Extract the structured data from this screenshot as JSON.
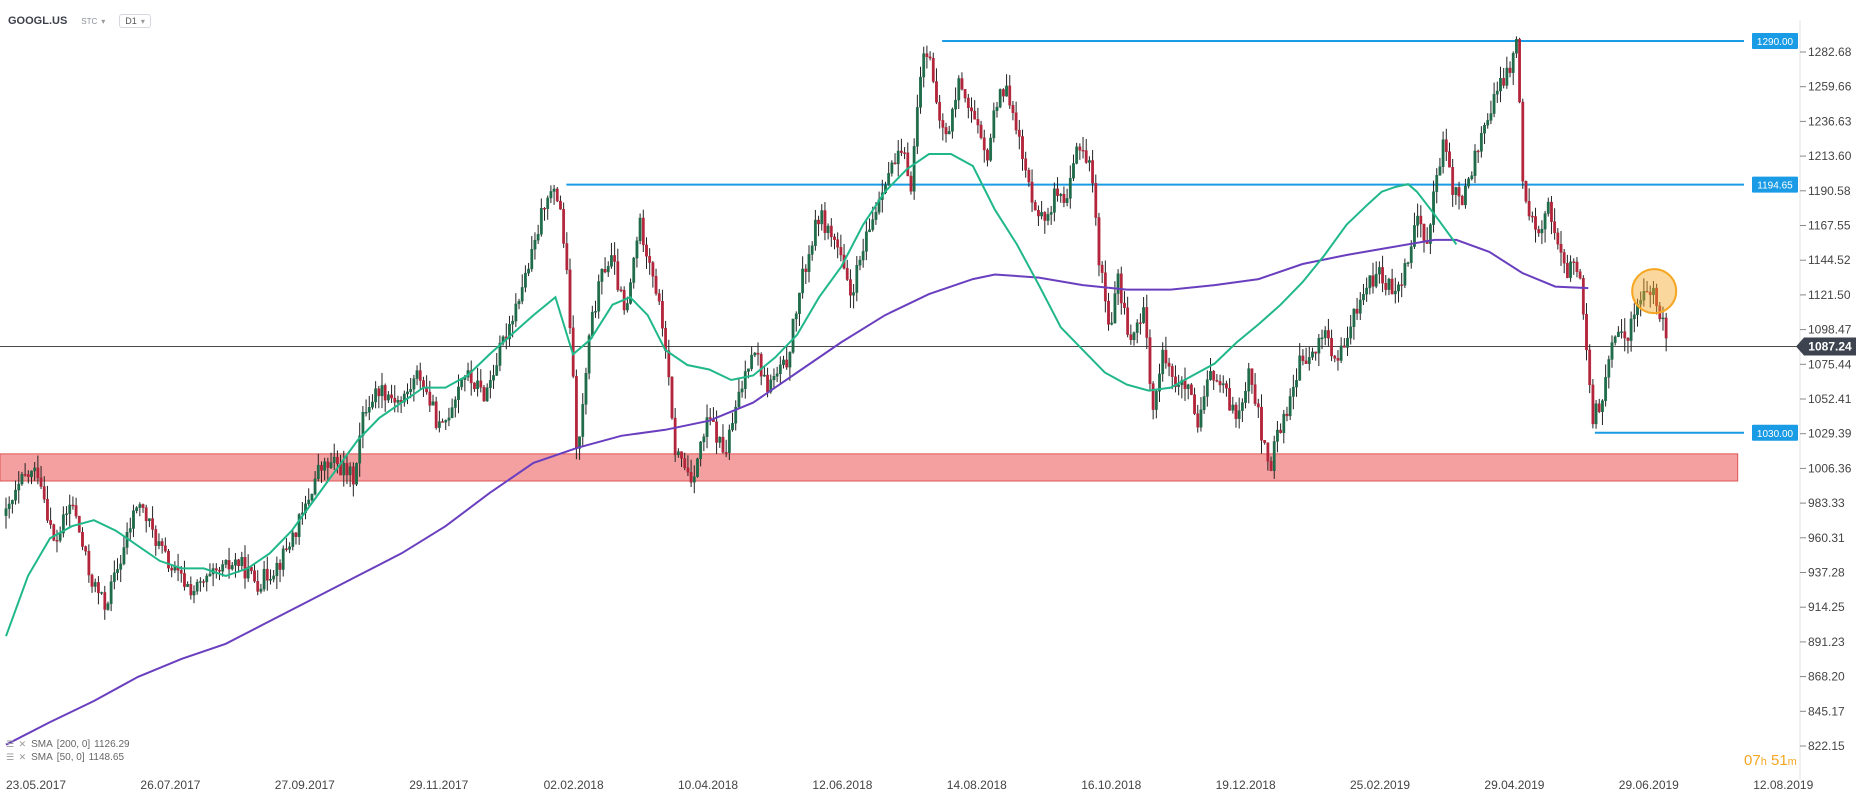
{
  "toolbar": {
    "symbol": "GOOGL.US",
    "type_label": "STC",
    "timeframe": "D1"
  },
  "sma_legend": [
    {
      "label": "SMA",
      "params": "[200, 0]",
      "value": "1126.29",
      "color": "#6a3fbf"
    },
    {
      "label": "SMA",
      "params": "[50, 0]",
      "value": "1148.65",
      "color": "#20b88a"
    }
  ],
  "countdown": {
    "hours": "07",
    "h_unit": "h",
    "minutes": "51",
    "m_unit": "m"
  },
  "chart_data": {
    "type": "candlestick",
    "title": "",
    "price_axis": {
      "ticks": [
        "1282.68",
        "1259.66",
        "1236.63",
        "1213.60",
        "1190.58",
        "1167.55",
        "1144.52",
        "1121.50",
        "1098.47",
        "1075.44",
        "1052.41",
        "1029.39",
        "1006.36",
        "983.33",
        "960.31",
        "937.28",
        "914.25",
        "891.23",
        "868.20",
        "845.17",
        "822.15"
      ],
      "range": [
        813,
        1305
      ]
    },
    "time_axis": {
      "ticks": [
        "23.05.2017",
        "26.07.2017",
        "27.09.2017",
        "29.11.2017",
        "02.02.2018",
        "10.04.2018",
        "12.06.2018",
        "14.08.2018",
        "16.10.2018",
        "19.12.2018",
        "25.02.2019",
        "29.04.2019",
        "29.06.2019",
        "12.08.2019"
      ],
      "range_days": [
        0,
        830
      ]
    },
    "current_price": {
      "value": 1087.24,
      "label": "1087.24"
    },
    "horizontal_levels": [
      {
        "value": 1290.0,
        "label": "1290.00",
        "start_day": 426,
        "color": "#1a9be6"
      },
      {
        "value": 1194.65,
        "label": "1194.65",
        "start_day": 255,
        "color": "#1a9be6"
      },
      {
        "value": 1030.0,
        "label": "1030.00",
        "start_day": 723,
        "color": "#1a9be6"
      }
    ],
    "support_zone": {
      "low": 998,
      "high": 1016,
      "color": "#f08080",
      "border": "#e05555",
      "end_day": 788
    },
    "highlight_marker": {
      "day": 750,
      "price": 1124,
      "color": "#f5a623"
    },
    "price_path": [
      [
        0,
        975
      ],
      [
        8,
        1000
      ],
      [
        15,
        1005
      ],
      [
        22,
        955
      ],
      [
        30,
        985
      ],
      [
        38,
        935
      ],
      [
        45,
        915
      ],
      [
        52,
        945
      ],
      [
        60,
        985
      ],
      [
        68,
        960
      ],
      [
        75,
        940
      ],
      [
        85,
        925
      ],
      [
        95,
        935
      ],
      [
        105,
        945
      ],
      [
        115,
        930
      ],
      [
        125,
        945
      ],
      [
        135,
        975
      ],
      [
        142,
        1005
      ],
      [
        150,
        1010
      ],
      [
        158,
        1000
      ],
      [
        163,
        1045
      ],
      [
        170,
        1060
      ],
      [
        180,
        1050
      ],
      [
        188,
        1070
      ],
      [
        198,
        1030
      ],
      [
        208,
        1070
      ],
      [
        218,
        1055
      ],
      [
        225,
        1085
      ],
      [
        232,
        1115
      ],
      [
        240,
        1150
      ],
      [
        246,
        1190
      ],
      [
        252,
        1185
      ],
      [
        256,
        1120
      ],
      [
        260,
        1010
      ],
      [
        266,
        1100
      ],
      [
        272,
        1140
      ],
      [
        276,
        1145
      ],
      [
        282,
        1105
      ],
      [
        288,
        1170
      ],
      [
        294,
        1140
      ],
      [
        300,
        1090
      ],
      [
        304,
        1020
      ],
      [
        312,
        1000
      ],
      [
        320,
        1040
      ],
      [
        327,
        1015
      ],
      [
        333,
        1050
      ],
      [
        340,
        1090
      ],
      [
        346,
        1060
      ],
      [
        355,
        1075
      ],
      [
        362,
        1130
      ],
      [
        370,
        1175
      ],
      [
        378,
        1155
      ],
      [
        384,
        1120
      ],
      [
        392,
        1160
      ],
      [
        400,
        1200
      ],
      [
        408,
        1215
      ],
      [
        412,
        1195
      ],
      [
        416,
        1270
      ],
      [
        420,
        1290
      ],
      [
        423,
        1245
      ],
      [
        428,
        1225
      ],
      [
        434,
        1265
      ],
      [
        440,
        1240
      ],
      [
        446,
        1210
      ],
      [
        452,
        1260
      ],
      [
        458,
        1250
      ],
      [
        462,
        1215
      ],
      [
        465,
        1195
      ],
      [
        472,
        1170
      ],
      [
        478,
        1190
      ],
      [
        482,
        1175
      ],
      [
        488,
        1225
      ],
      [
        494,
        1205
      ],
      [
        497,
        1150
      ],
      [
        502,
        1100
      ],
      [
        506,
        1130
      ],
      [
        512,
        1090
      ],
      [
        518,
        1110
      ],
      [
        522,
        1045
      ],
      [
        527,
        1085
      ],
      [
        533,
        1060
      ],
      [
        538,
        1060
      ],
      [
        542,
        1030
      ],
      [
        548,
        1070
      ],
      [
        555,
        1055
      ],
      [
        560,
        1040
      ],
      [
        566,
        1075
      ],
      [
        570,
        1040
      ],
      [
        575,
        1000
      ],
      [
        578,
        1030
      ],
      [
        582,
        1040
      ],
      [
        588,
        1075
      ],
      [
        595,
        1080
      ],
      [
        600,
        1100
      ],
      [
        605,
        1075
      ],
      [
        610,
        1090
      ],
      [
        615,
        1115
      ],
      [
        620,
        1130
      ],
      [
        625,
        1135
      ],
      [
        630,
        1125
      ],
      [
        636,
        1135
      ],
      [
        642,
        1175
      ],
      [
        646,
        1155
      ],
      [
        650,
        1190
      ],
      [
        654,
        1220
      ],
      [
        658,
        1195
      ],
      [
        662,
        1180
      ],
      [
        668,
        1210
      ],
      [
        674,
        1240
      ],
      [
        680,
        1260
      ],
      [
        685,
        1275
      ],
      [
        688,
        1290
      ],
      [
        690,
        1195
      ],
      [
        694,
        1175
      ],
      [
        698,
        1165
      ],
      [
        702,
        1180
      ],
      [
        706,
        1160
      ],
      [
        710,
        1130
      ],
      [
        714,
        1150
      ],
      [
        718,
        1110
      ],
      [
        722,
        1040
      ],
      [
        726,
        1050
      ],
      [
        730,
        1080
      ],
      [
        734,
        1100
      ],
      [
        738,
        1095
      ],
      [
        742,
        1115
      ],
      [
        746,
        1125
      ],
      [
        750,
        1120
      ],
      [
        754,
        1102
      ],
      [
        756,
        1087
      ]
    ],
    "sma50": [
      [
        0,
        895
      ],
      [
        10,
        935
      ],
      [
        20,
        960
      ],
      [
        30,
        968
      ],
      [
        40,
        972
      ],
      [
        50,
        965
      ],
      [
        60,
        955
      ],
      [
        70,
        945
      ],
      [
        80,
        940
      ],
      [
        90,
        940
      ],
      [
        100,
        935
      ],
      [
        110,
        940
      ],
      [
        120,
        950
      ],
      [
        130,
        965
      ],
      [
        140,
        985
      ],
      [
        150,
        1005
      ],
      [
        160,
        1025
      ],
      [
        170,
        1040
      ],
      [
        180,
        1050
      ],
      [
        190,
        1060
      ],
      [
        200,
        1060
      ],
      [
        210,
        1068
      ],
      [
        220,
        1082
      ],
      [
        230,
        1095
      ],
      [
        240,
        1108
      ],
      [
        250,
        1120
      ],
      [
        258,
        1082
      ],
      [
        266,
        1092
      ],
      [
        276,
        1115
      ],
      [
        284,
        1120
      ],
      [
        292,
        1108
      ],
      [
        300,
        1085
      ],
      [
        310,
        1075
      ],
      [
        320,
        1072
      ],
      [
        330,
        1065
      ],
      [
        340,
        1068
      ],
      [
        350,
        1080
      ],
      [
        360,
        1095
      ],
      [
        370,
        1120
      ],
      [
        380,
        1140
      ],
      [
        390,
        1168
      ],
      [
        400,
        1190
      ],
      [
        410,
        1205
      ],
      [
        420,
        1215
      ],
      [
        430,
        1215
      ],
      [
        440,
        1207
      ],
      [
        450,
        1178
      ],
      [
        460,
        1155
      ],
      [
        470,
        1128
      ],
      [
        480,
        1100
      ],
      [
        490,
        1085
      ],
      [
        500,
        1070
      ],
      [
        510,
        1062
      ],
      [
        520,
        1058
      ],
      [
        530,
        1060
      ],
      [
        540,
        1068
      ],
      [
        550,
        1076
      ],
      [
        560,
        1090
      ],
      [
        570,
        1102
      ],
      [
        580,
        1115
      ],
      [
        590,
        1130
      ],
      [
        600,
        1148
      ],
      [
        610,
        1168
      ],
      [
        620,
        1182
      ],
      [
        626,
        1190
      ],
      [
        632,
        1193
      ],
      [
        638,
        1195
      ],
      [
        642,
        1190
      ],
      [
        650,
        1175
      ],
      [
        660,
        1155
      ]
    ],
    "sma200": [
      [
        0,
        823
      ],
      [
        20,
        838
      ],
      [
        40,
        852
      ],
      [
        60,
        868
      ],
      [
        80,
        880
      ],
      [
        100,
        890
      ],
      [
        120,
        905
      ],
      [
        140,
        920
      ],
      [
        160,
        935
      ],
      [
        180,
        950
      ],
      [
        200,
        968
      ],
      [
        220,
        990
      ],
      [
        240,
        1010
      ],
      [
        260,
        1020
      ],
      [
        280,
        1028
      ],
      [
        300,
        1032
      ],
      [
        320,
        1038
      ],
      [
        340,
        1050
      ],
      [
        360,
        1070
      ],
      [
        380,
        1090
      ],
      [
        400,
        1108
      ],
      [
        420,
        1122
      ],
      [
        440,
        1132
      ],
      [
        450,
        1135
      ],
      [
        470,
        1133
      ],
      [
        490,
        1128
      ],
      [
        510,
        1125
      ],
      [
        530,
        1125
      ],
      [
        550,
        1128
      ],
      [
        570,
        1132
      ],
      [
        590,
        1142
      ],
      [
        610,
        1148
      ],
      [
        630,
        1153
      ],
      [
        650,
        1158
      ],
      [
        660,
        1158
      ],
      [
        675,
        1150
      ],
      [
        690,
        1136
      ],
      [
        705,
        1127
      ],
      [
        720,
        1126
      ]
    ]
  }
}
